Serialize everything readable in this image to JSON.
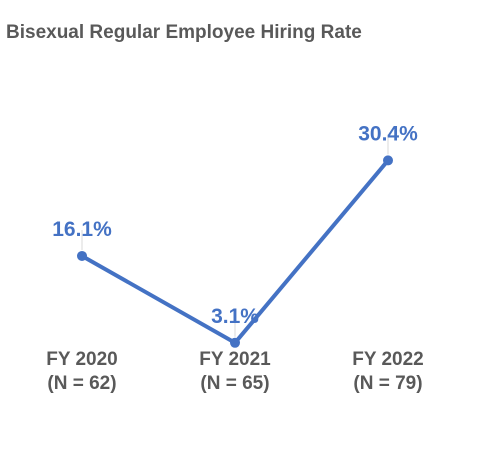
{
  "chart_data": {
    "type": "line",
    "title": "Bisexual Regular Employee Hiring Rate",
    "categories": [
      "FY 2020",
      "FY 2021",
      "FY 2022"
    ],
    "category_sublabels": [
      "(N = 62)",
      "(N = 65)",
      "(N = 79)"
    ],
    "series": [
      {
        "values": [
          16.1,
          3.1,
          30.4
        ],
        "data_labels": [
          "16.1%",
          "3.1%",
          "30.4%"
        ]
      }
    ],
    "xlabel": "",
    "ylabel": "",
    "ylim": [
      0,
      35
    ],
    "grid": false,
    "colors": {
      "line": "#4472C4",
      "data_label": "#4472C4",
      "category_label": "#595959",
      "title": "#595959"
    }
  }
}
